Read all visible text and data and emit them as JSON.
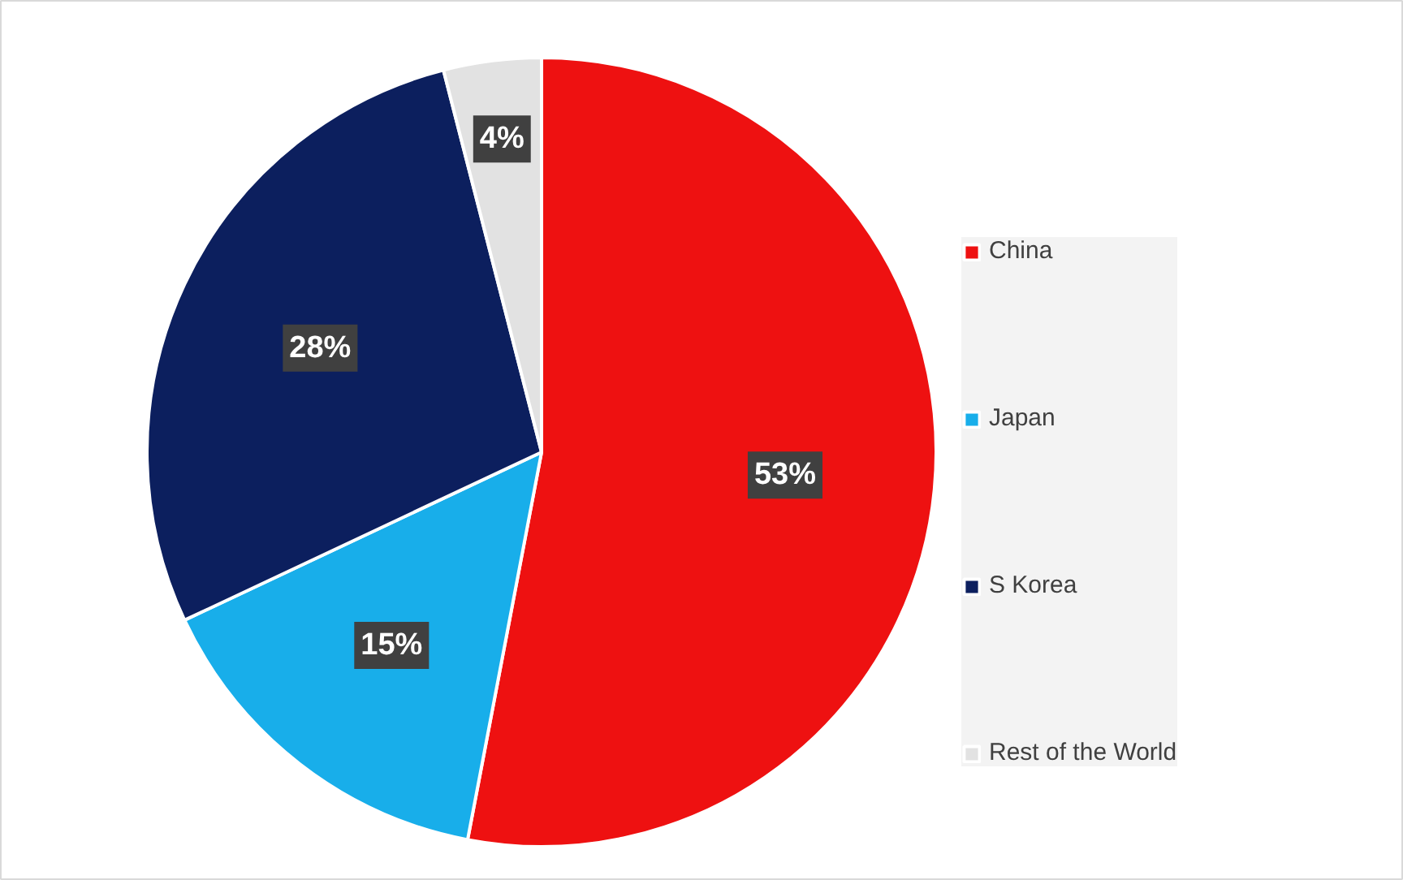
{
  "chart_data": {
    "type": "pie",
    "categories": [
      "China",
      "Japan",
      "S Korea",
      "Rest of the World"
    ],
    "values": [
      53,
      15,
      28,
      4
    ],
    "colors": [
      "#ee1111",
      "#18aeea",
      "#0c1f5e",
      "#e2e2e2"
    ],
    "value_labels": [
      "53%",
      "15%",
      "28%",
      "4%"
    ],
    "legend": "right"
  }
}
